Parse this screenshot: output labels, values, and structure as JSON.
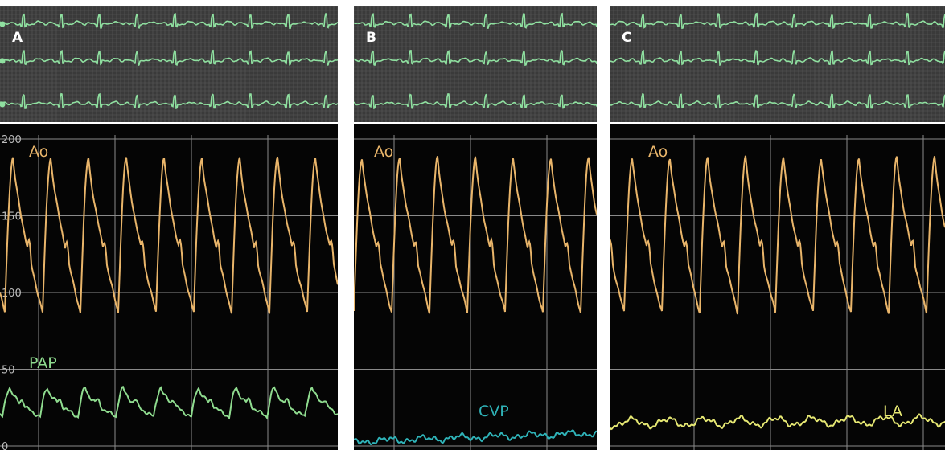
{
  "panels": [
    {
      "id": "A",
      "letter": "A",
      "pressure_labels": [
        "Ao",
        "PAP"
      ],
      "secondary_color": "#8fdc8f"
    },
    {
      "id": "B",
      "letter": "B",
      "pressure_labels": [
        "Ao",
        "CVP"
      ],
      "secondary_color": "#2fb3b8"
    },
    {
      "id": "C",
      "letter": "C",
      "pressure_labels": [
        "Ao",
        "LA"
      ],
      "secondary_color": "#e6e873"
    }
  ],
  "axis_ticks": [
    "200",
    "150",
    "100",
    "50",
    "0"
  ],
  "colors": {
    "ecg_background": "#3a3a3a",
    "ecg_trace": "#8fe0a0",
    "monitor_background": "#050505",
    "grid": "#8a8a8a",
    "aortic_trace": "#e9b56a",
    "pap_trace": "#8fdc8f",
    "cvp_trace": "#2fb3b8",
    "la_trace": "#e6e873"
  }
}
